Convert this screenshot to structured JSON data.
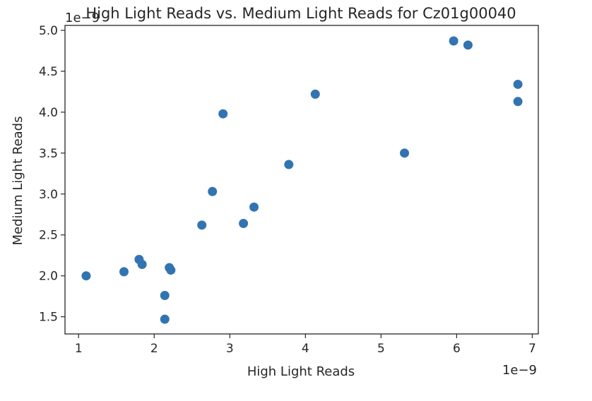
{
  "chart_data": {
    "type": "scatter",
    "title": "High Light Reads vs. Medium Light Reads for Cz01g00040",
    "xlabel": "High Light Reads",
    "ylabel": "Medium Light Reads",
    "x_offset_label": "1e−9",
    "y_offset_label": "1e−9",
    "xlim": [
      0.82,
      7.08
    ],
    "ylim": [
      1.29,
      5.06
    ],
    "xticks": [
      1,
      2,
      3,
      4,
      5,
      6,
      7
    ],
    "xtick_labels": [
      "1",
      "2",
      "3",
      "4",
      "5",
      "6",
      "7"
    ],
    "yticks": [
      1.5,
      2.0,
      2.5,
      3.0,
      3.5,
      4.0,
      4.5,
      5.0
    ],
    "ytick_labels": [
      "1.5",
      "2.0",
      "2.5",
      "3.0",
      "3.5",
      "4.0",
      "4.5",
      "5.0"
    ],
    "grid": false,
    "marker_color": "#3274b1",
    "points": [
      {
        "x": 1.1,
        "y": 2.0
      },
      {
        "x": 1.6,
        "y": 2.05
      },
      {
        "x": 1.8,
        "y": 2.2
      },
      {
        "x": 1.84,
        "y": 2.14
      },
      {
        "x": 2.14,
        "y": 1.76
      },
      {
        "x": 2.14,
        "y": 1.47
      },
      {
        "x": 2.2,
        "y": 2.1
      },
      {
        "x": 2.22,
        "y": 2.07
      },
      {
        "x": 2.63,
        "y": 2.62
      },
      {
        "x": 2.77,
        "y": 3.03
      },
      {
        "x": 2.91,
        "y": 3.98
      },
      {
        "x": 3.18,
        "y": 2.64
      },
      {
        "x": 3.32,
        "y": 2.84
      },
      {
        "x": 3.78,
        "y": 3.36
      },
      {
        "x": 4.13,
        "y": 4.22
      },
      {
        "x": 5.31,
        "y": 3.5
      },
      {
        "x": 5.96,
        "y": 4.87
      },
      {
        "x": 6.15,
        "y": 4.82
      },
      {
        "x": 6.81,
        "y": 4.34
      },
      {
        "x": 6.81,
        "y": 4.13
      }
    ]
  }
}
